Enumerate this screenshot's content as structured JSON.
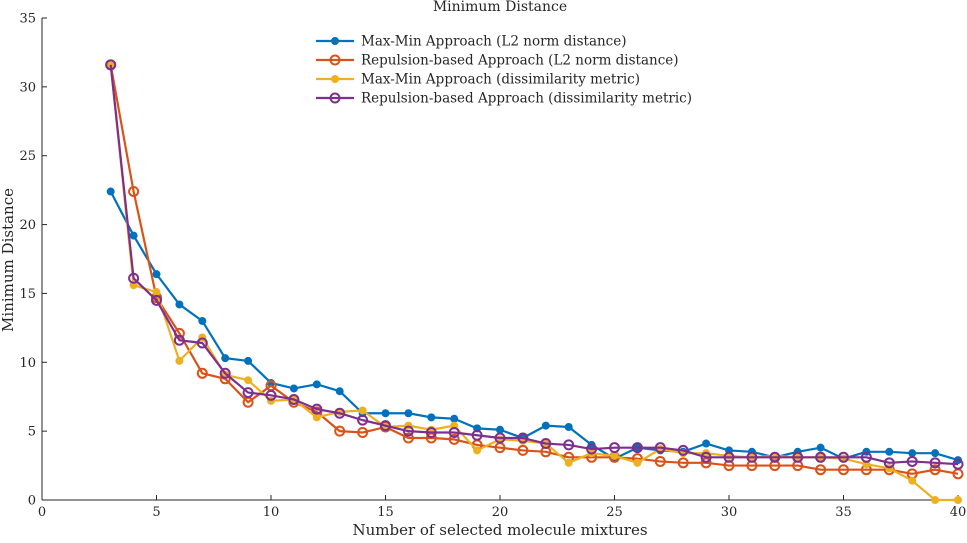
{
  "chart_data": {
    "type": "line",
    "title": "Minimum Distance",
    "xlabel": "Number of selected molecule mixtures",
    "ylabel": "Minimum Distance",
    "xlim": [
      0,
      40
    ],
    "ylim": [
      0,
      35
    ],
    "xticks": [
      0,
      5,
      10,
      15,
      20,
      25,
      30,
      35,
      40
    ],
    "yticks": [
      0,
      5,
      10,
      15,
      20,
      25,
      30,
      35
    ],
    "grid": false,
    "legend_position": "top-center",
    "x": [
      3,
      4,
      5,
      6,
      7,
      8,
      9,
      10,
      11,
      12,
      13,
      14,
      15,
      16,
      17,
      18,
      19,
      20,
      21,
      22,
      23,
      24,
      25,
      26,
      27,
      28,
      29,
      30,
      31,
      32,
      33,
      34,
      35,
      36,
      37,
      38,
      39,
      40
    ],
    "series": [
      {
        "name": "Max-Min Approach (L2 norm distance)",
        "color": "#0072BD",
        "marker": "filled-circle",
        "values": [
          22.4,
          19.2,
          16.4,
          14.2,
          13.0,
          10.3,
          10.1,
          8.5,
          8.1,
          8.4,
          7.9,
          6.3,
          6.3,
          6.3,
          6.0,
          5.9,
          5.2,
          5.1,
          4.5,
          5.4,
          5.3,
          4.0,
          3.0,
          3.8,
          3.6,
          3.5,
          4.1,
          3.6,
          3.5,
          3.1,
          3.5,
          3.8,
          3.0,
          3.5,
          3.5,
          3.4,
          3.4,
          2.9
        ]
      },
      {
        "name": "Repulsion-based Approach (L2 norm distance)",
        "color": "#D95319",
        "marker": "open-circle",
        "values": [
          31.6,
          22.4,
          14.7,
          12.1,
          9.2,
          8.8,
          7.1,
          8.3,
          7.1,
          6.4,
          5.0,
          4.9,
          5.3,
          4.5,
          4.5,
          4.4,
          4.0,
          3.8,
          3.6,
          3.5,
          3.1,
          3.1,
          3.1,
          3.0,
          2.8,
          2.7,
          2.7,
          2.5,
          2.5,
          2.5,
          2.5,
          2.2,
          2.2,
          2.2,
          2.2,
          1.9,
          2.2,
          1.9
        ]
      },
      {
        "name": "Max-Min Approach (dissimilarity metric)",
        "color": "#EDB120",
        "marker": "filled-circle",
        "values": [
          31.6,
          15.6,
          15.1,
          10.1,
          11.8,
          9.1,
          8.7,
          7.2,
          7.3,
          6.0,
          6.4,
          6.5,
          5.3,
          5.4,
          5.1,
          5.4,
          3.6,
          4.4,
          4.3,
          4.1,
          2.7,
          3.4,
          3.2,
          2.7,
          3.7,
          3.4,
          3.4,
          3.2,
          3.1,
          3.2,
          3.1,
          3.1,
          3.0,
          2.6,
          2.3,
          1.4,
          0.0,
          0.0
        ]
      },
      {
        "name": "Repulsion-based Approach (dissimilarity metric)",
        "color": "#7E2F8E",
        "marker": "open-circle",
        "values": [
          31.6,
          16.1,
          14.5,
          11.6,
          11.4,
          9.2,
          7.8,
          7.6,
          7.3,
          6.6,
          6.3,
          5.8,
          5.4,
          5.0,
          4.9,
          4.9,
          4.7,
          4.5,
          4.5,
          4.1,
          4.0,
          3.7,
          3.8,
          3.8,
          3.8,
          3.6,
          3.1,
          3.1,
          3.1,
          3.1,
          3.1,
          3.1,
          3.1,
          3.1,
          2.7,
          2.8,
          2.7,
          2.6
        ]
      }
    ]
  }
}
